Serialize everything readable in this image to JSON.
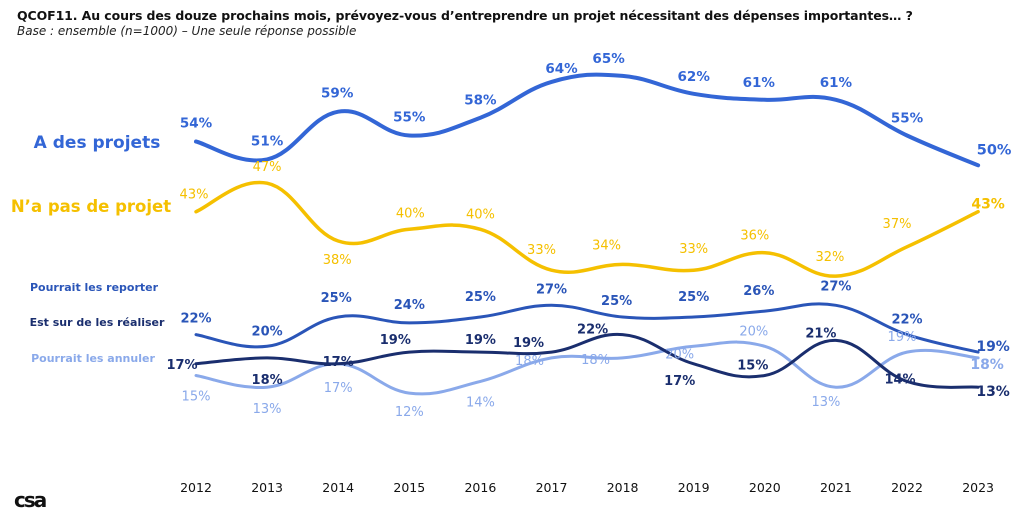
{
  "header": {
    "title": "QCOF11. Au cours des douze prochains mois, prévoyez-vous d’entreprendre un projet nécessitant des dépenses importantes… ?",
    "subtitle": "Base : ensemble (n=1000) – Une seule réponse possible"
  },
  "logo": {
    "text": "csa"
  },
  "colors": {
    "a_des_projets": "#3366d6",
    "pas_de_projet": "#f5c000",
    "reporter": "#2a55b8",
    "realiser": "#1a2e6e",
    "annuler": "#8aa9ea"
  },
  "chart_data": {
    "type": "line",
    "x": [
      "2012",
      "2013",
      "2014",
      "2015",
      "2016",
      "2017",
      "2018",
      "2019",
      "2020",
      "2021",
      "2022",
      "2023"
    ],
    "value_suffix": "%",
    "series": [
      {
        "key": "a_des_projets",
        "name": "A des projets",
        "values": [
          54,
          51,
          59,
          55,
          58,
          64,
          65,
          62,
          61,
          61,
          55,
          50
        ]
      },
      {
        "key": "pas_de_projet",
        "name": "N’a pas de projet",
        "values": [
          43,
          47,
          38,
          40,
          40,
          33,
          34,
          33,
          36,
          32,
          37,
          43
        ]
      },
      {
        "key": "reporter",
        "name": "Pourrait les reporter",
        "values": [
          22,
          20,
          25,
          24,
          25,
          27,
          25,
          25,
          26,
          27,
          22,
          19
        ]
      },
      {
        "key": "realiser",
        "name": "Est sur de les réaliser",
        "values": [
          17,
          18,
          17,
          19,
          19,
          19,
          22,
          17,
          15,
          21,
          14,
          13
        ]
      },
      {
        "key": "annuler",
        "name": "Pourrait les annuler",
        "values": [
          15,
          13,
          17,
          12,
          14,
          18,
          18,
          20,
          20,
          13,
          19,
          18
        ]
      }
    ]
  }
}
